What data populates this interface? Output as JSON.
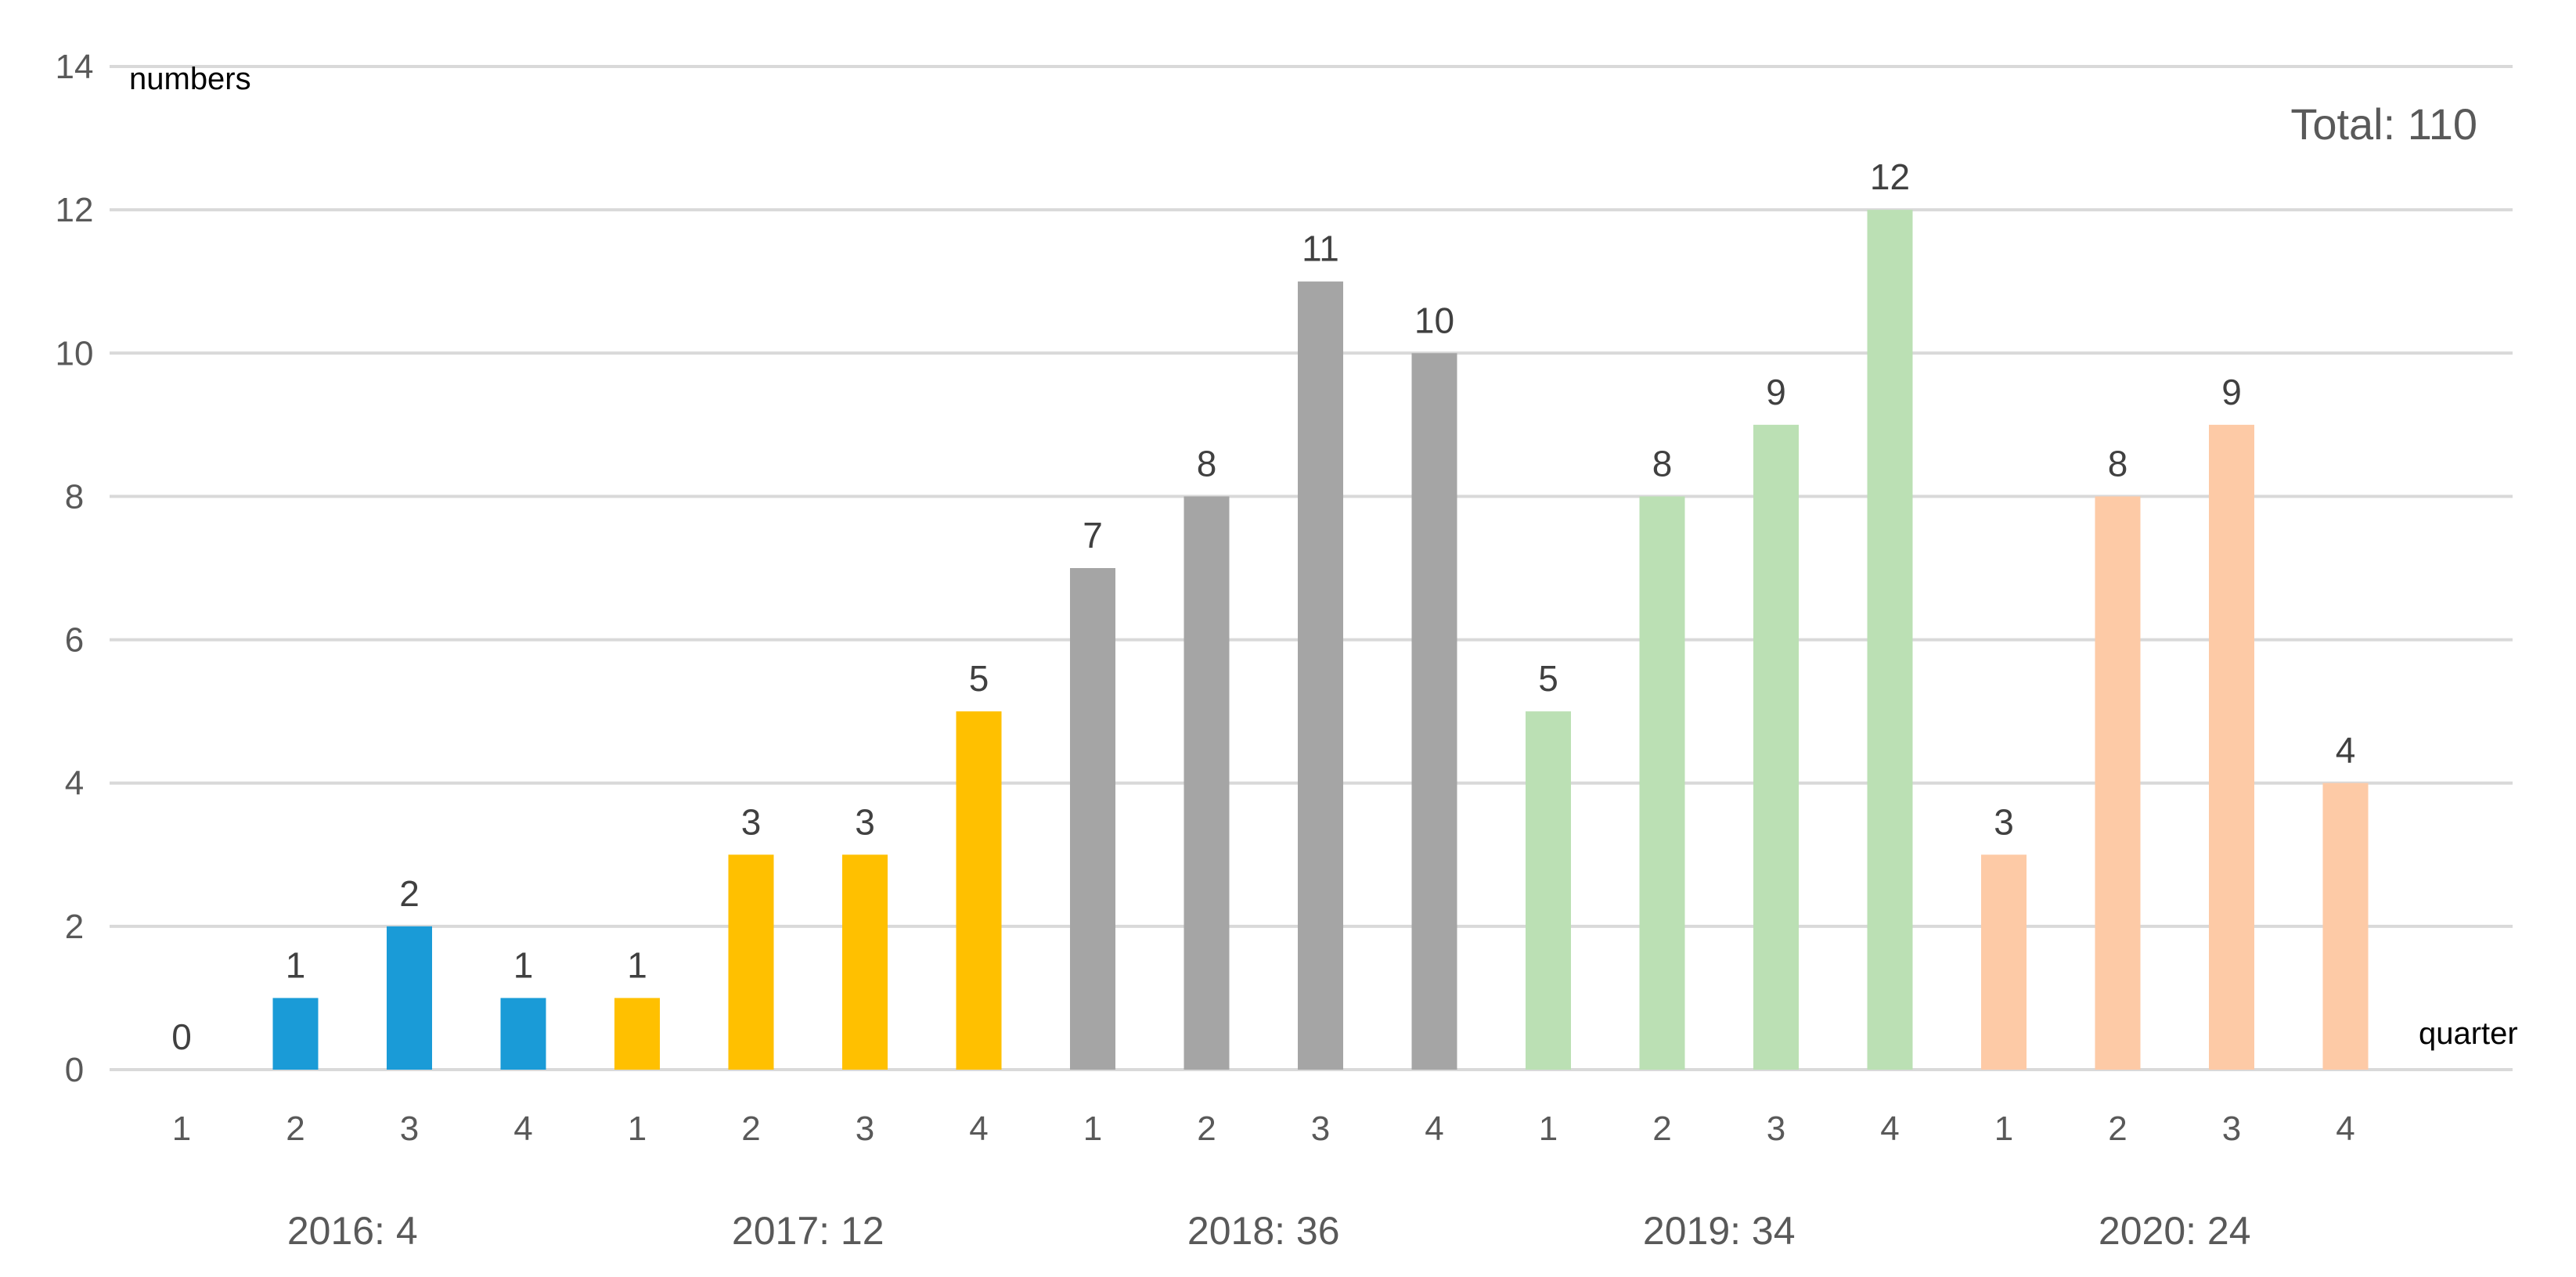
{
  "chart_data": {
    "type": "bar",
    "ylabel": "numbers",
    "xlabel": "quarter",
    "ylim": [
      0,
      14
    ],
    "yticks": [
      0,
      2,
      4,
      6,
      8,
      10,
      12,
      14
    ],
    "grid": true,
    "legend": "none",
    "annotation": "Total: 110",
    "groups": [
      {
        "label": "2016: 4",
        "color": "#1a9bd7",
        "categories": [
          "1",
          "2",
          "3",
          "4"
        ],
        "values": [
          0,
          1,
          2,
          1
        ]
      },
      {
        "label": "2017: 12",
        "color": "#ffc000",
        "categories": [
          "1",
          "2",
          "3",
          "4"
        ],
        "values": [
          1,
          3,
          3,
          5
        ]
      },
      {
        "label": "2018: 36",
        "color": "#a5a5a5",
        "categories": [
          "1",
          "2",
          "3",
          "4"
        ],
        "values": [
          7,
          8,
          11,
          10
        ]
      },
      {
        "label": "2019: 34",
        "color": "#bbe0b4",
        "categories": [
          "1",
          "2",
          "3",
          "4"
        ],
        "values": [
          5,
          8,
          9,
          12
        ]
      },
      {
        "label": "2020: 24",
        "color": "#fdcaa6",
        "categories": [
          "1",
          "2",
          "3",
          "4"
        ],
        "values": [
          3,
          8,
          9,
          4
        ]
      }
    ]
  }
}
